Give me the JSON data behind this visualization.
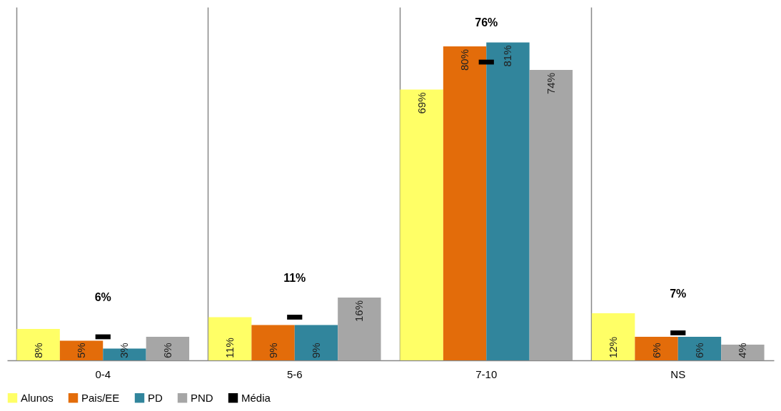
{
  "chart_data": {
    "type": "bar",
    "categories": [
      "0-4",
      "5-6",
      "7-10",
      "NS"
    ],
    "series": [
      {
        "name": "Alunos",
        "color": "#ffff66",
        "values": [
          8,
          11,
          69,
          12
        ],
        "value_labels": [
          "8%",
          "11%",
          "69%",
          "12%"
        ]
      },
      {
        "name": "Pais/EE",
        "color": "#e36c0a",
        "values": [
          5,
          9,
          80,
          6
        ],
        "value_labels": [
          "5%",
          "9%",
          "80%",
          "6%"
        ]
      },
      {
        "name": "PD",
        "color": "#31859c",
        "values": [
          3,
          9,
          81,
          6
        ],
        "value_labels": [
          "3%",
          "9%",
          "81%",
          "6%"
        ]
      },
      {
        "name": "PND",
        "color": "#a6a6a6",
        "values": [
          6,
          16,
          74,
          4
        ],
        "value_labels": [
          "6%",
          "16%",
          "74%",
          "4%"
        ]
      },
      {
        "name": "Média",
        "type": "scatter",
        "color": "#000000",
        "values": [
          6,
          11,
          76,
          7
        ],
        "value_labels": [
          "6%",
          "11%",
          "76%",
          "7%"
        ]
      }
    ],
    "tick_labels": "x",
    "grid": "x",
    "legend": "bottom"
  }
}
